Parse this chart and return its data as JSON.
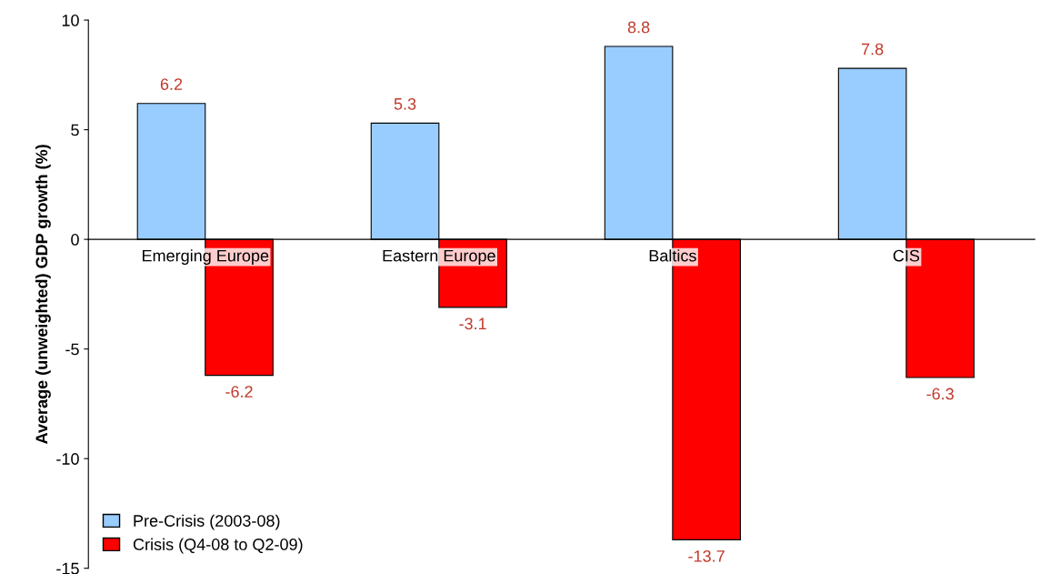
{
  "chart_data": {
    "type": "bar",
    "ylabel": "Average (unweighted) GDP growth (%)",
    "categories": [
      "Emerging Europe",
      "Eastern Europe",
      "Baltics",
      "CIS"
    ],
    "series": [
      {
        "name": "Pre-Crisis (2003-08)",
        "color": "#99ccff",
        "values": [
          6.2,
          5.3,
          8.8,
          7.8
        ]
      },
      {
        "name": "Crisis (Q4-08 to Q2-09)",
        "color": "#ff0000",
        "values": [
          -6.2,
          -3.1,
          -13.7,
          -6.3
        ]
      }
    ],
    "ylim": [
      -15,
      10
    ],
    "yticks": [
      -15,
      -10,
      -5,
      0,
      5,
      10
    ],
    "grid": false,
    "legend": "bottom left",
    "data_labels": true
  }
}
